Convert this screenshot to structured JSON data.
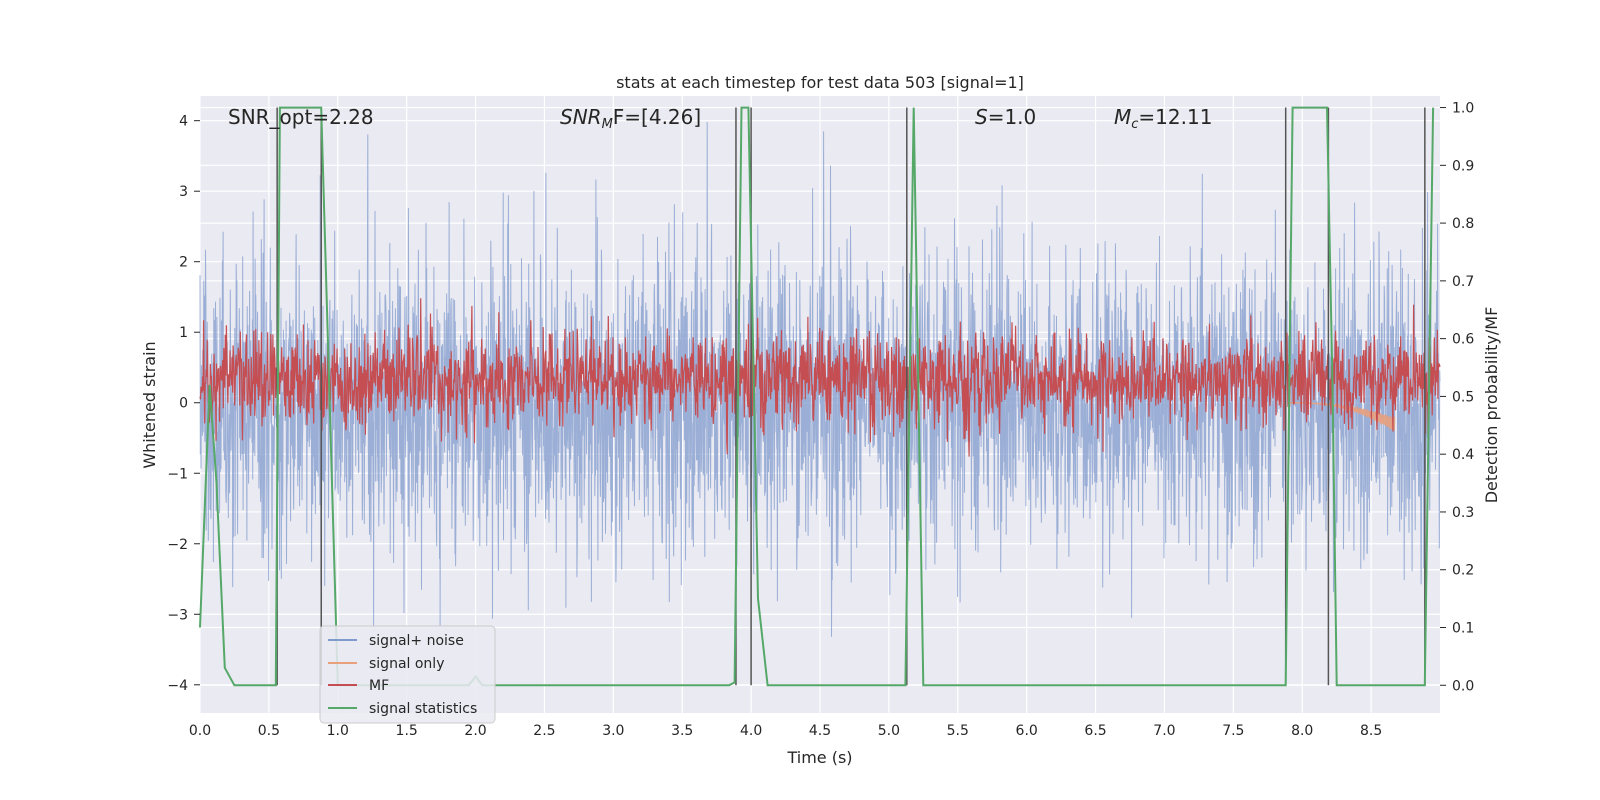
{
  "chart_data": {
    "type": "line",
    "title": "stats at each timestep for test data 503 [signal=1]",
    "xlabel": "Time (s)",
    "ylabel": "Whitened strain",
    "y2label": "Detection probability/MF",
    "xlim": [
      0.0,
      9.0
    ],
    "ylim": [
      -4.4,
      4.35
    ],
    "y2lim": [
      -0.048,
      1.02
    ],
    "xticks": [
      "0.0",
      "0.5",
      "1.0",
      "1.5",
      "2.0",
      "2.5",
      "3.0",
      "3.5",
      "4.0",
      "4.5",
      "5.0",
      "5.5",
      "6.0",
      "6.5",
      "7.0",
      "7.5",
      "8.0",
      "8.5"
    ],
    "yticks": [
      "4",
      "3",
      "2",
      "1",
      "0",
      "−1",
      "−2",
      "−3",
      "−4"
    ],
    "y2ticks": [
      "1.0",
      "0.9",
      "0.8",
      "0.7",
      "0.6",
      "0.5",
      "0.4",
      "0.3",
      "0.2",
      "0.1",
      "0.0"
    ],
    "grid": true,
    "legend_position": "lower-left",
    "annotations": {
      "snr_opt": "SNR_opt=2.28",
      "snr_mf_base": "SNR",
      "snr_mf_sub": "M",
      "snr_mf_rest": "F=[4.26]",
      "s_label": "S",
      "s_value": "=1.0",
      "mc_base": "M",
      "mc_sub": "c",
      "mc_value": "=12.11"
    },
    "series": [
      {
        "name": "signal+ noise",
        "color": "#7f9acc",
        "kind": "noise",
        "amplitude_std": 1.05,
        "x_range": [
          0.0,
          9.0
        ]
      },
      {
        "name": "signal only",
        "color": "#e8a07d",
        "kind": "chirp",
        "x_range": [
          7.9,
          8.67
        ],
        "peak_amplitude": -0.4
      },
      {
        "name": "MF",
        "color": "#c44e52",
        "kind": "mf",
        "axis": "secondary",
        "mean": 0.53,
        "spread": 0.04
      },
      {
        "name": "signal statistics",
        "color": "#55a868",
        "axis": "secondary",
        "x": [
          0.0,
          0.07,
          0.12,
          0.18,
          0.25,
          0.55,
          0.58,
          0.62,
          0.88,
          1.0,
          1.95,
          2.0,
          2.05,
          3.84,
          3.88,
          3.93,
          3.98,
          4.05,
          4.12,
          5.12,
          5.18,
          5.25,
          7.88,
          7.93,
          8.18,
          8.22,
          8.25,
          8.89,
          8.95
        ],
        "y": [
          0.1,
          0.52,
          0.35,
          0.03,
          0.0,
          0.0,
          1.0,
          1.0,
          1.0,
          0.0,
          0.0,
          0.015,
          0.0,
          0.0,
          0.005,
          1.0,
          1.0,
          0.15,
          0.0,
          0.0,
          1.0,
          0.0,
          0.0,
          1.0,
          1.0,
          0.52,
          0.0,
          0.0,
          1.0
        ]
      }
    ],
    "vlines": [
      0.56,
      0.88,
      3.89,
      4.0,
      5.13,
      7.88,
      8.19,
      8.89
    ]
  }
}
